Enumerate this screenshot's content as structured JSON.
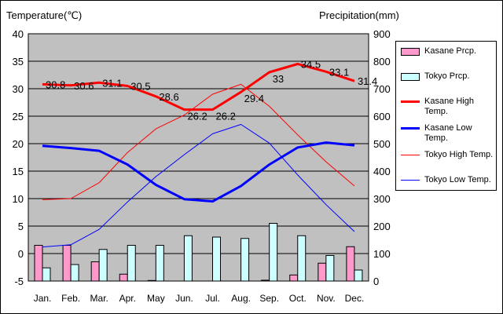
{
  "chart_data": {
    "type": "bar",
    "categories": [
      "Jan.",
      "Feb.",
      "Mar.",
      "Apr.",
      "May",
      "Jun.",
      "Jul.",
      "Aug.",
      "Sep.",
      "Oct.",
      "Nov.",
      "Dec."
    ],
    "ylabel_left": "Temperature(℃)",
    "ylabel_right": "Precipitation(mm)",
    "y_left_ticks": [
      "40",
      "35",
      "30",
      "25",
      "20",
      "15",
      "10",
      "5",
      "0",
      "-5"
    ],
    "y_right_ticks": [
      "900",
      "800",
      "700",
      "600",
      "500",
      "400",
      "300",
      "200",
      "100",
      "0"
    ],
    "ylim_left": [
      -5,
      40
    ],
    "ylim_right": [
      0,
      900
    ],
    "grid": true,
    "legend_position": "right",
    "series": [
      {
        "name": "Kasane Prcp.",
        "kind": "bar",
        "axis": "right",
        "color": "#ff99cc",
        "values": [
          130,
          130,
          70,
          25,
          2,
          0,
          0,
          0,
          3,
          22,
          65,
          125
        ]
      },
      {
        "name": "Tokyo Prcp.",
        "kind": "bar",
        "axis": "right",
        "color": "#ccffff",
        "values": [
          48,
          60,
          115,
          130,
          130,
          165,
          160,
          155,
          210,
          165,
          93,
          40
        ]
      },
      {
        "name": "Kasane High Temp.",
        "kind": "line",
        "axis": "left",
        "color": "#ff0000",
        "width": 3,
        "values": [
          30.8,
          30.6,
          31.1,
          30.5,
          28.6,
          26.2,
          26.2,
          29.4,
          33,
          34.5,
          33.1,
          31.4
        ],
        "labels": [
          "30.8",
          "30.6",
          "31.1",
          "30.5",
          "28.6",
          "26.2",
          "26.2",
          "29.4",
          "33",
          "34.5",
          "33.1",
          "31.4"
        ]
      },
      {
        "name": "Kasane Low Temp.",
        "kind": "line",
        "axis": "left",
        "color": "#0000ff",
        "width": 3,
        "values": [
          19.6,
          19.2,
          18.7,
          16.2,
          12.5,
          9.9,
          9.5,
          12.3,
          16.2,
          19.3,
          20.2,
          19.7
        ]
      },
      {
        "name": "Tokyo High Temp.",
        "kind": "line",
        "axis": "left",
        "color": "#ff0000",
        "width": 1,
        "values": [
          9.8,
          10,
          12.9,
          18.4,
          22.7,
          25.2,
          29,
          30.8,
          26.8,
          21.6,
          16.7,
          12.3
        ]
      },
      {
        "name": "Tokyo Low Temp.",
        "kind": "line",
        "axis": "left",
        "color": "#0000ff",
        "width": 1,
        "values": [
          1.2,
          1.6,
          4.4,
          9.4,
          14,
          18,
          21.8,
          23.5,
          20.1,
          14.3,
          8.9,
          4
        ]
      }
    ]
  },
  "legend": {
    "items": [
      {
        "label": "Kasane Prcp.",
        "swatch": "bar",
        "color": "#ff99cc"
      },
      {
        "label": "Tokyo Prcp.",
        "swatch": "bar",
        "color": "#ccffff"
      },
      {
        "label": "Kasane High Temp.",
        "swatch": "line",
        "color": "#ff0000",
        "width": 3
      },
      {
        "label": "Kasane Low Temp.",
        "swatch": "line",
        "color": "#0000ff",
        "width": 3
      },
      {
        "label": "Tokyo High Temp.",
        "swatch": "line",
        "color": "#ff0000",
        "width": 1
      },
      {
        "label": "Tokyo Low Temp.",
        "swatch": "line",
        "color": "#0000ff",
        "width": 1
      }
    ]
  },
  "colors": {
    "plot_background": "#c0c0c0",
    "gridline": "#000000"
  }
}
